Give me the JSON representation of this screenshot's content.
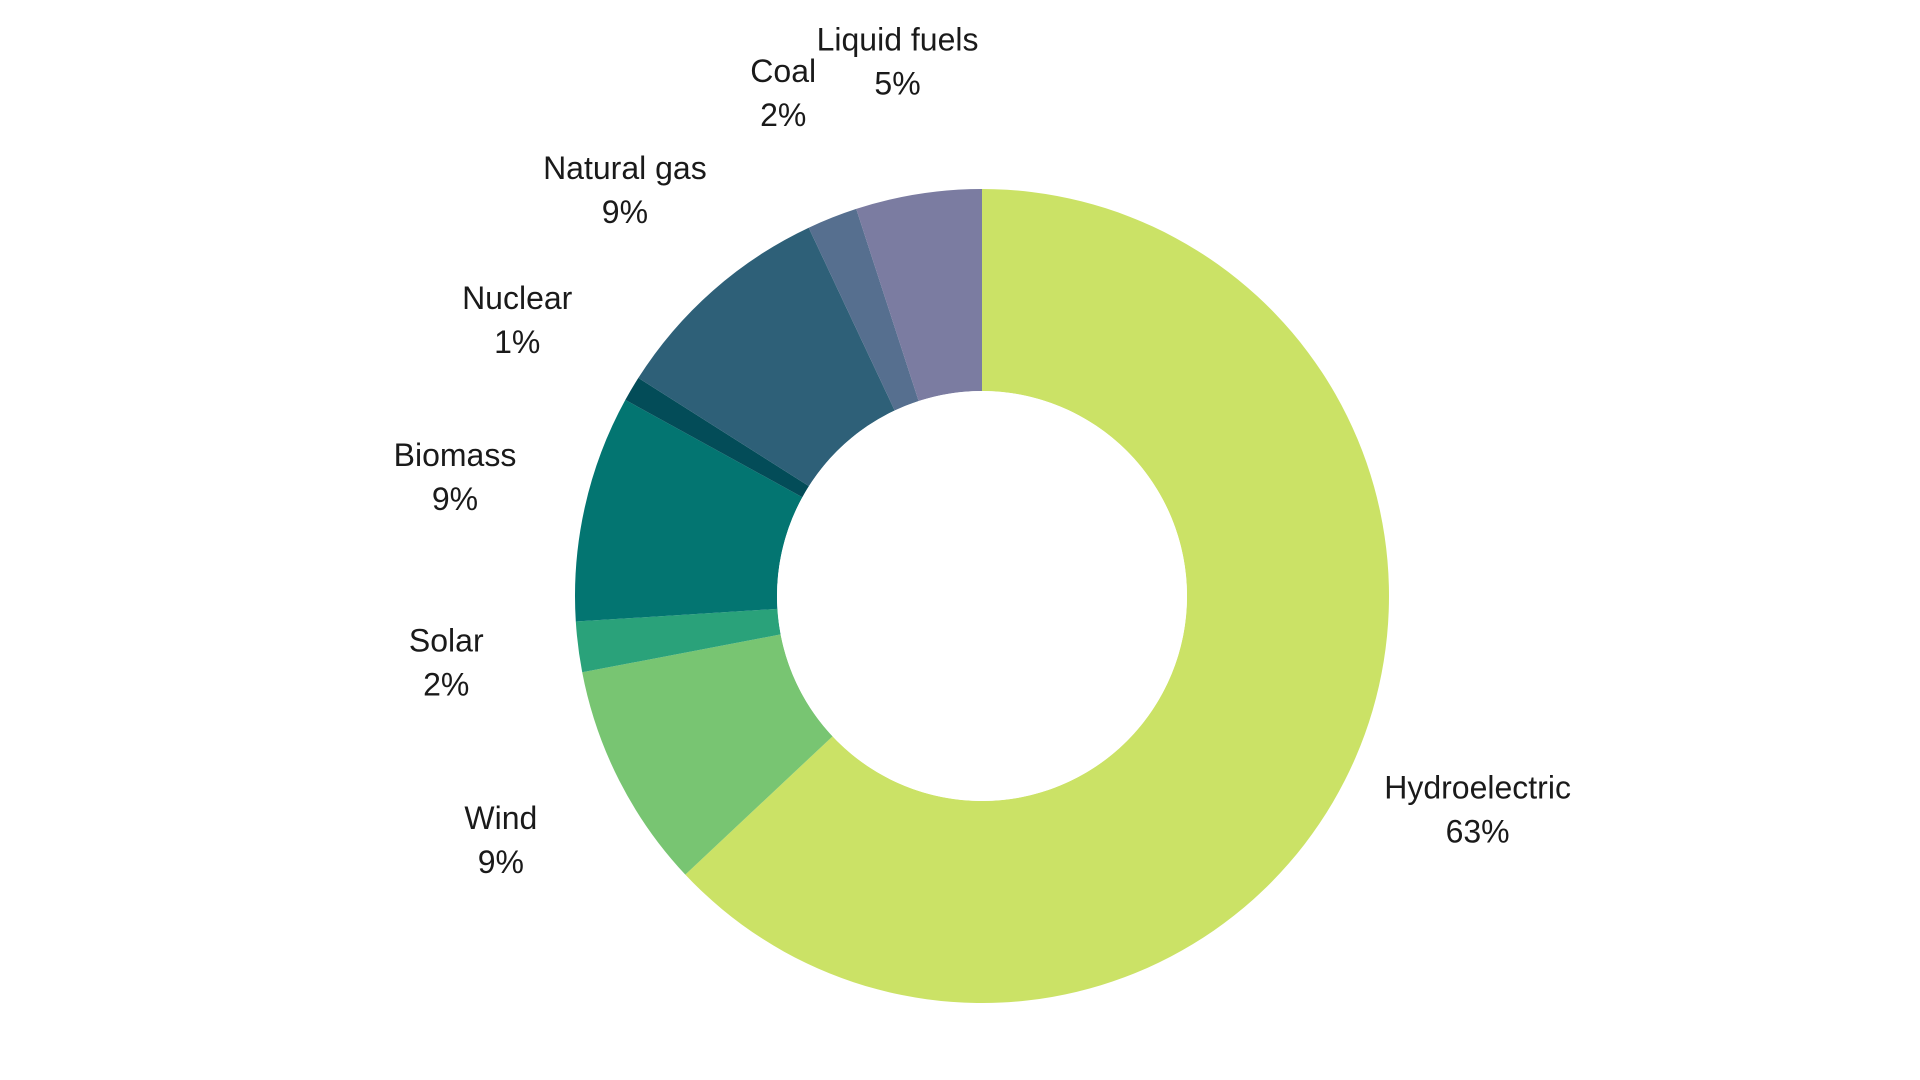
{
  "chart_data": {
    "type": "pie",
    "style": "donut",
    "title": "",
    "slices": [
      {
        "label": "Hydroelectric",
        "value": 63,
        "display": "63%",
        "color": "#cbe266"
      },
      {
        "label": "Wind",
        "value": 9,
        "display": "9%",
        "color": "#78c572"
      },
      {
        "label": "Solar",
        "value": 2,
        "display": "2%",
        "color": "#2aa27a"
      },
      {
        "label": "Biomass",
        "value": 9,
        "display": "9%",
        "color": "#037571"
      },
      {
        "label": "Nuclear",
        "value": 1,
        "display": "1%",
        "color": "#034c58"
      },
      {
        "label": "Natural gas",
        "value": 9,
        "display": "9%",
        "color": "#2e6078"
      },
      {
        "label": "Coal",
        "value": 2,
        "display": "2%",
        "color": "#566f8f"
      },
      {
        "label": "Liquid fuels",
        "value": 5,
        "display": "5%",
        "color": "#7b7ca1"
      }
    ],
    "legend": "none",
    "data_labels": "outside"
  }
}
